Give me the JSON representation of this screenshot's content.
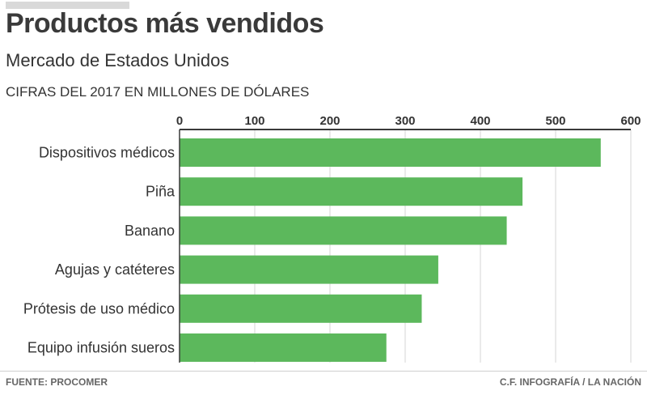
{
  "header": {
    "title": "Productos más vendidos",
    "subtitle": "Mercado de Estados Unidos",
    "units": "CIFRAS DEL 2017 EN MILLONES DE DÓLARES"
  },
  "footer": {
    "source": "FUENTE: PROCOMER",
    "credit": "C.F. INFOGRAFÍA / LA NACIÓN"
  },
  "colors": {
    "bar": "#5cb85c",
    "grid": "#d4d4d4",
    "axis": "#3a3a3a"
  },
  "chart_data": {
    "type": "bar",
    "orientation": "horizontal",
    "title": "Productos más vendidos",
    "subtitle": "Mercado de Estados Unidos",
    "xlabel": "CIFRAS DEL 2017 EN MILLONES DE DÓLARES",
    "ylabel": "",
    "xlim": [
      0,
      600
    ],
    "xticks": [
      0,
      100,
      200,
      300,
      400,
      500,
      600
    ],
    "tick_labels": [
      "0",
      "100",
      "200",
      "300",
      "400",
      "500",
      "600"
    ],
    "axis_position": "top",
    "grid": true,
    "categories": [
      "Dispositivos médicos",
      "Piña",
      "Banano",
      "Agujas y catéteres",
      "Prótesis de uso médico",
      "Equipo infusión sueros"
    ],
    "values": [
      560,
      456,
      435,
      344,
      322,
      275
    ]
  }
}
